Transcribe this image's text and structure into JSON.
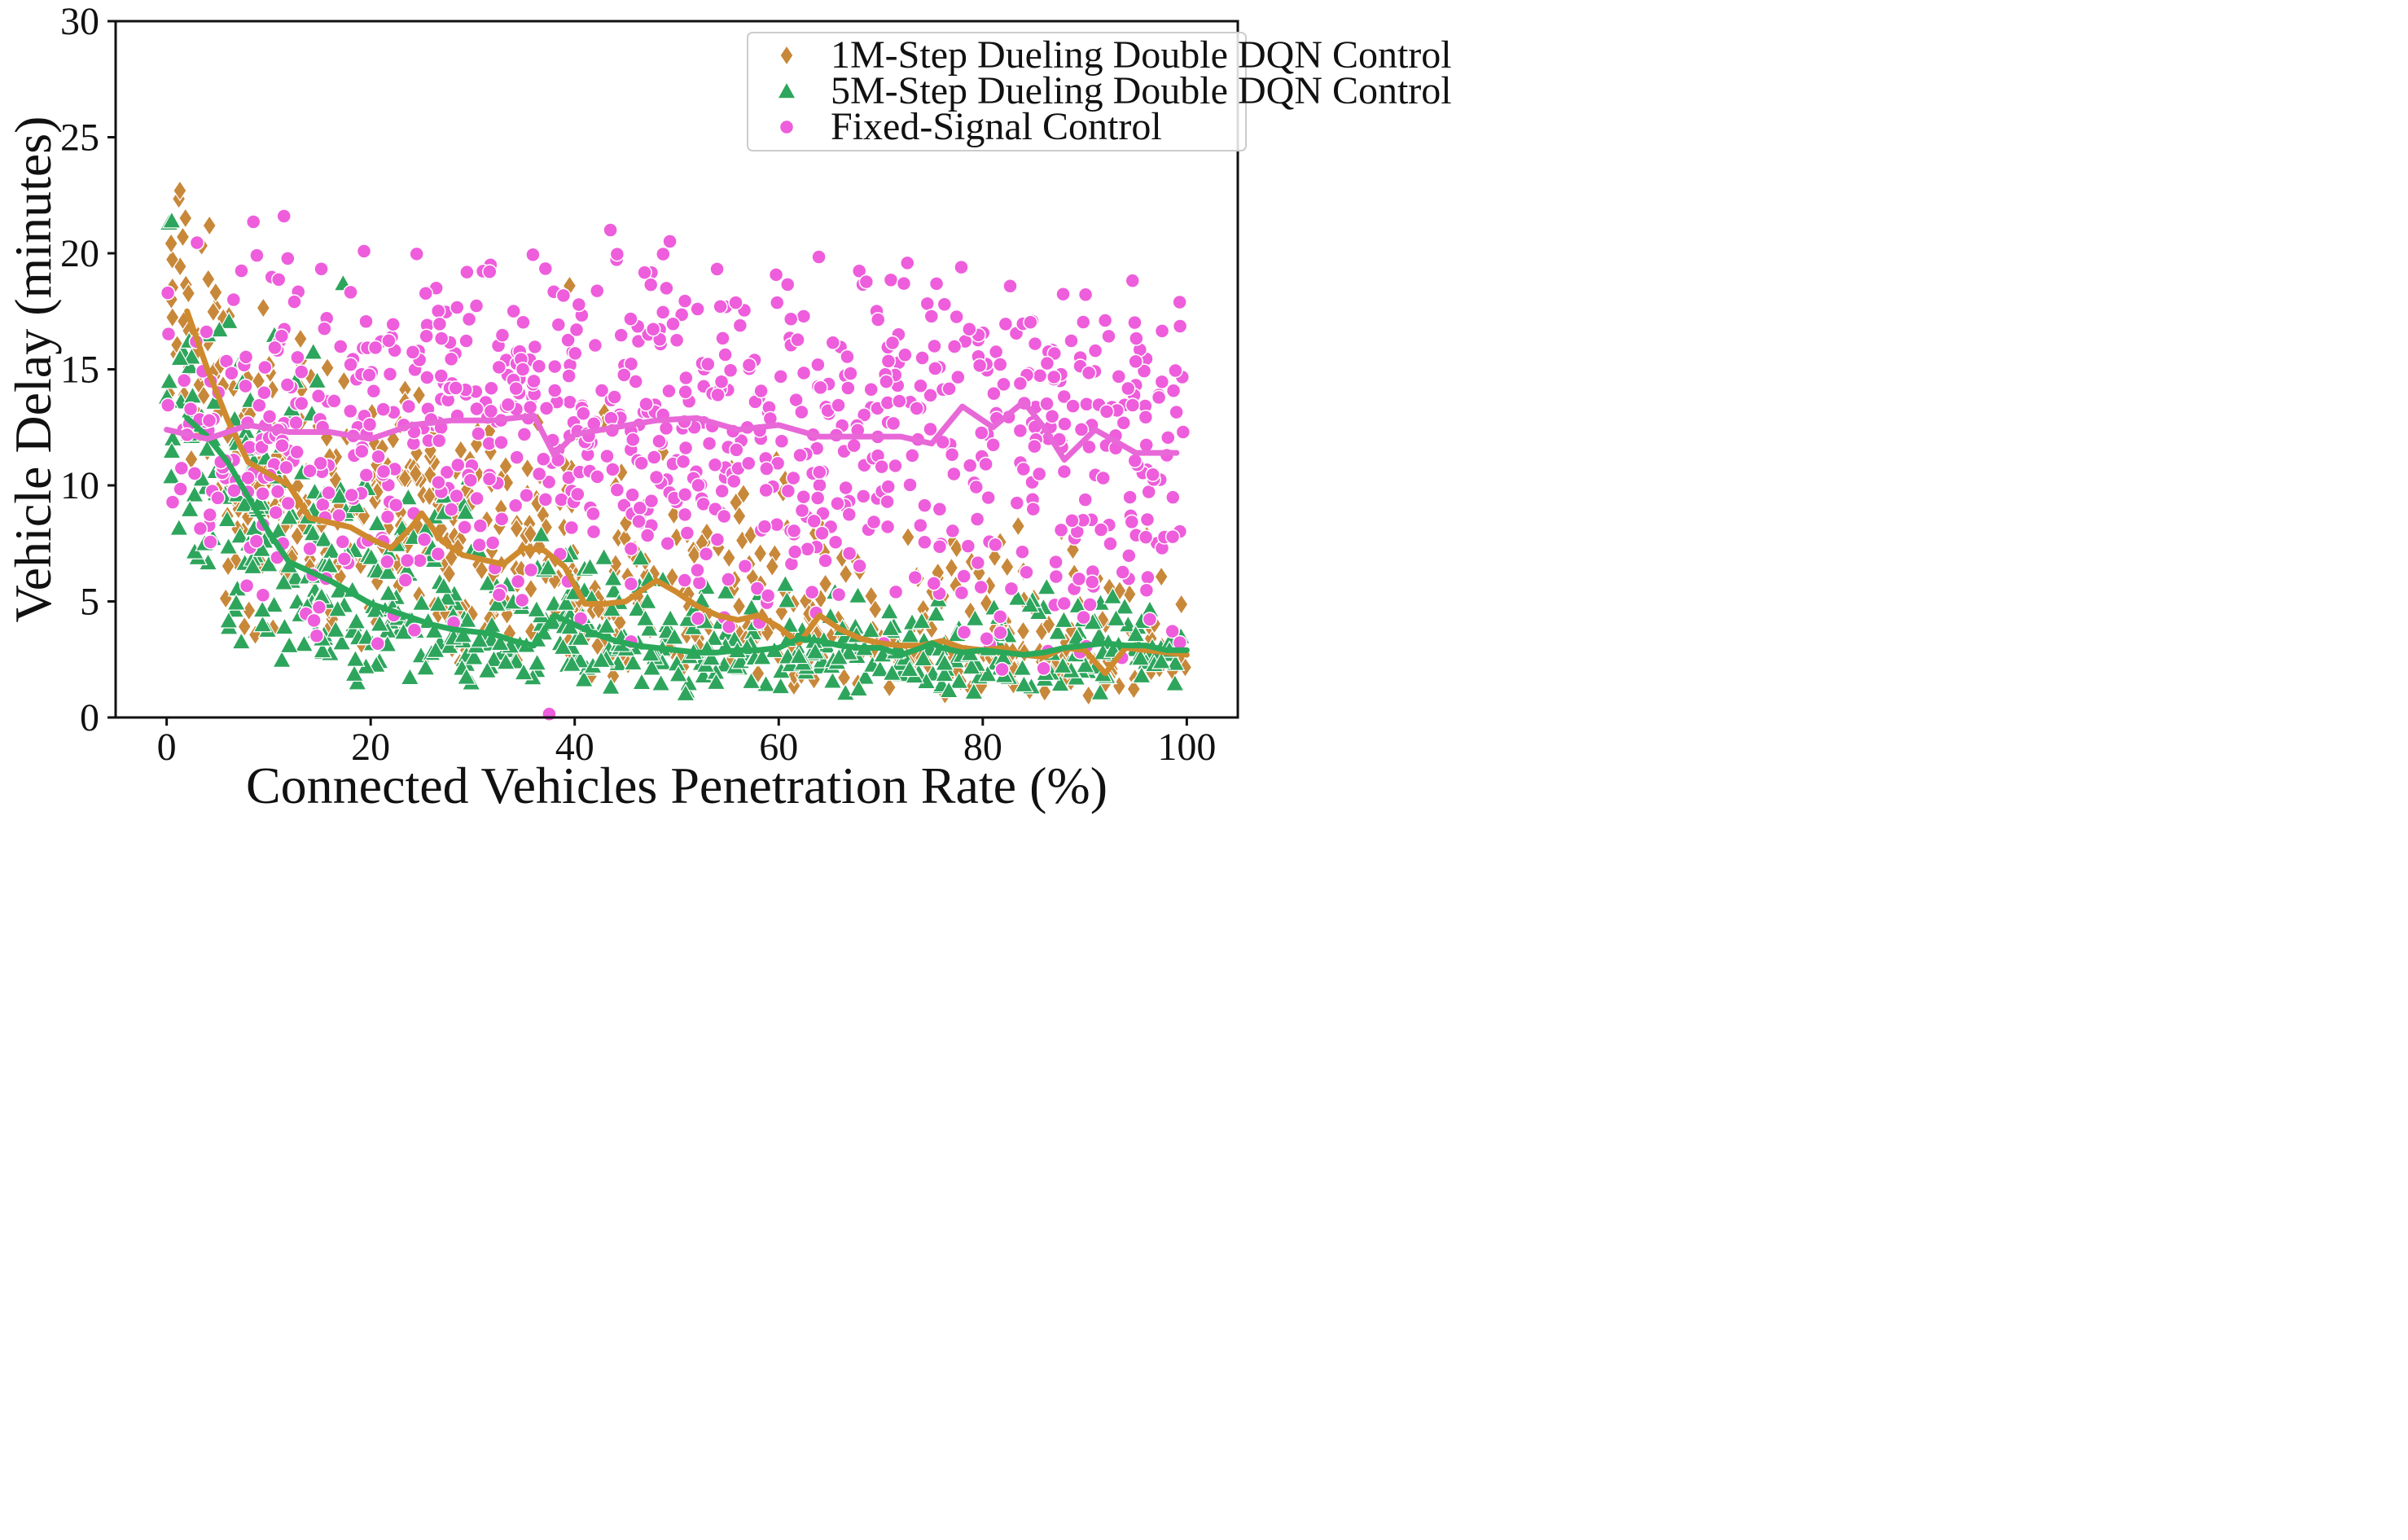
{
  "chart_data": {
    "type": "scatter",
    "title": "",
    "xlabel": "Connected Vehicles Penetration Rate (%)",
    "ylabel": "Vehicle Delay (minutes)",
    "xlim": [
      -5,
      105
    ],
    "ylim": [
      0,
      30
    ],
    "xticks": [
      0,
      20,
      40,
      60,
      80,
      100
    ],
    "yticks": [
      0,
      5,
      10,
      15,
      20,
      25,
      30
    ],
    "grid": false,
    "legend_position": "top-right",
    "series": [
      {
        "name": "1M-Step Dueling Double DQN Control",
        "marker": "diamond",
        "color": "#c8883a",
        "trend_color": "#d08a2e",
        "trend": {
          "x": [
            2,
            4,
            6,
            8,
            10,
            12,
            14,
            16,
            18,
            20,
            22,
            24,
            25,
            27,
            29,
            31,
            33,
            35,
            37,
            39,
            41,
            43,
            45,
            47,
            48,
            50,
            52,
            54,
            56,
            58,
            60,
            62,
            64,
            66,
            68,
            70,
            72,
            74,
            76,
            78,
            80,
            82,
            84,
            86,
            88,
            90,
            92,
            94,
            96,
            98,
            100
          ],
          "y": [
            17.5,
            15.0,
            12.8,
            11.0,
            10.5,
            10.0,
            8.6,
            8.4,
            8.2,
            7.7,
            7.3,
            8.2,
            8.8,
            7.6,
            7.0,
            6.8,
            6.6,
            7.3,
            7.2,
            6.5,
            4.9,
            4.9,
            5.0,
            5.6,
            5.9,
            5.4,
            4.8,
            4.4,
            4.2,
            4.4,
            3.9,
            3.2,
            4.4,
            3.8,
            3.4,
            3.2,
            3.1,
            3.1,
            3.3,
            3.0,
            2.9,
            3.0,
            2.7,
            2.6,
            3.0,
            2.9,
            1.9,
            3.0,
            2.9,
            2.8,
            2.7
          ]
        },
        "cloud": [
          {
            "x0": 0,
            "x1": 5,
            "lo": 8.0,
            "hi": 22.7,
            "n": 40
          },
          {
            "x0": 5,
            "x1": 15,
            "lo": 3.0,
            "hi": 19.0,
            "n": 95
          },
          {
            "x0": 15,
            "x1": 30,
            "lo": 2.0,
            "hi": 16.0,
            "n": 120
          },
          {
            "x0": 30,
            "x1": 45,
            "lo": 1.5,
            "hi": 14.0,
            "n": 110
          },
          {
            "x0": 45,
            "x1": 65,
            "lo": 1.0,
            "hi": 12.0,
            "n": 110
          },
          {
            "x0": 65,
            "x1": 100,
            "lo": 0.8,
            "hi": 9.0,
            "n": 160
          }
        ]
      },
      {
        "name": "5M-Step Dueling Double DQN Control",
        "marker": "triangle",
        "color": "#2ea55c",
        "trend_color": "#2aa85a",
        "trend": {
          "x": [
            2,
            4,
            6,
            8,
            10,
            12,
            14,
            16,
            18,
            20,
            22,
            24,
            26,
            28,
            30,
            32,
            34,
            36,
            38,
            40,
            42,
            44,
            46,
            48,
            50,
            52,
            54,
            56,
            58,
            60,
            62,
            64,
            66,
            68,
            70,
            72,
            74,
            75,
            76,
            78,
            80,
            82,
            84,
            86,
            88,
            90,
            92,
            94,
            96,
            98,
            100
          ],
          "y": [
            12.9,
            12.1,
            11.0,
            9.5,
            8.0,
            6.7,
            6.3,
            5.9,
            5.4,
            4.9,
            4.6,
            4.3,
            4.0,
            3.8,
            3.7,
            3.6,
            3.3,
            3.1,
            4.4,
            4.0,
            3.6,
            3.3,
            3.1,
            3.0,
            2.9,
            2.8,
            2.8,
            2.9,
            2.9,
            3.0,
            3.4,
            3.3,
            3.1,
            3.0,
            3.0,
            2.7,
            3.0,
            3.2,
            3.0,
            2.8,
            2.9,
            2.8,
            2.7,
            2.8,
            3.0,
            3.1,
            3.2,
            3.1,
            3.1,
            2.9,
            2.9
          ]
        },
        "cloud": [
          {
            "x0": 0,
            "x1": 5,
            "lo": 5.0,
            "hi": 21.5,
            "n": 35
          },
          {
            "x0": 5,
            "x1": 15,
            "lo": 1.8,
            "hi": 18.5,
            "n": 90
          },
          {
            "x0": 15,
            "x1": 30,
            "lo": 1.2,
            "hi": 11.0,
            "n": 120
          },
          {
            "x0": 30,
            "x1": 50,
            "lo": 1.0,
            "hi": 8.0,
            "n": 130
          },
          {
            "x0": 50,
            "x1": 100,
            "lo": 0.8,
            "hi": 6.0,
            "n": 230
          }
        ]
      },
      {
        "name": "Fixed-Signal Control",
        "marker": "circle",
        "color": "#ee5ddb",
        "trend_color": "#e868d8",
        "trend": {
          "x": [
            0,
            4,
            8,
            12,
            16,
            20,
            24,
            28,
            32,
            36,
            38,
            40,
            44,
            48,
            52,
            56,
            60,
            64,
            68,
            72,
            75,
            78,
            81,
            84,
            86,
            88,
            91,
            95,
            99
          ],
          "y": [
            12.4,
            12.0,
            12.6,
            12.3,
            12.3,
            12.0,
            12.6,
            12.8,
            12.8,
            13.0,
            11.3,
            12.2,
            12.5,
            12.8,
            12.9,
            12.4,
            12.6,
            12.1,
            12.1,
            12.1,
            11.8,
            13.4,
            12.5,
            13.6,
            12.5,
            11.1,
            12.4,
            11.4,
            11.4
          ]
        },
        "cloud": [
          {
            "x0": 0,
            "x1": 10,
            "lo": 3.0,
            "hi": 21.5,
            "n": 70
          },
          {
            "x0": 10,
            "x1": 40,
            "lo": 2.5,
            "hi": 21.0,
            "n": 280
          },
          {
            "x0": 40,
            "x1": 70,
            "lo": 3.0,
            "hi": 21.0,
            "n": 280
          },
          {
            "x0": 70,
            "x1": 100,
            "lo": 1.0,
            "hi": 20.5,
            "n": 260
          }
        ]
      }
    ],
    "notable_points": [
      {
        "series": 2,
        "x": 11.5,
        "y": 21.6
      },
      {
        "series": 2,
        "x": 37.5,
        "y": 0.15
      },
      {
        "series": 2,
        "x": 43.5,
        "y": 21.0
      },
      {
        "series": 0,
        "x": 1.3,
        "y": 22.7
      },
      {
        "series": 0,
        "x": 39.5,
        "y": 18.6
      },
      {
        "series": 1,
        "x": 0.5,
        "y": 21.4
      },
      {
        "series": 1,
        "x": 17.3,
        "y": 18.7
      }
    ]
  }
}
